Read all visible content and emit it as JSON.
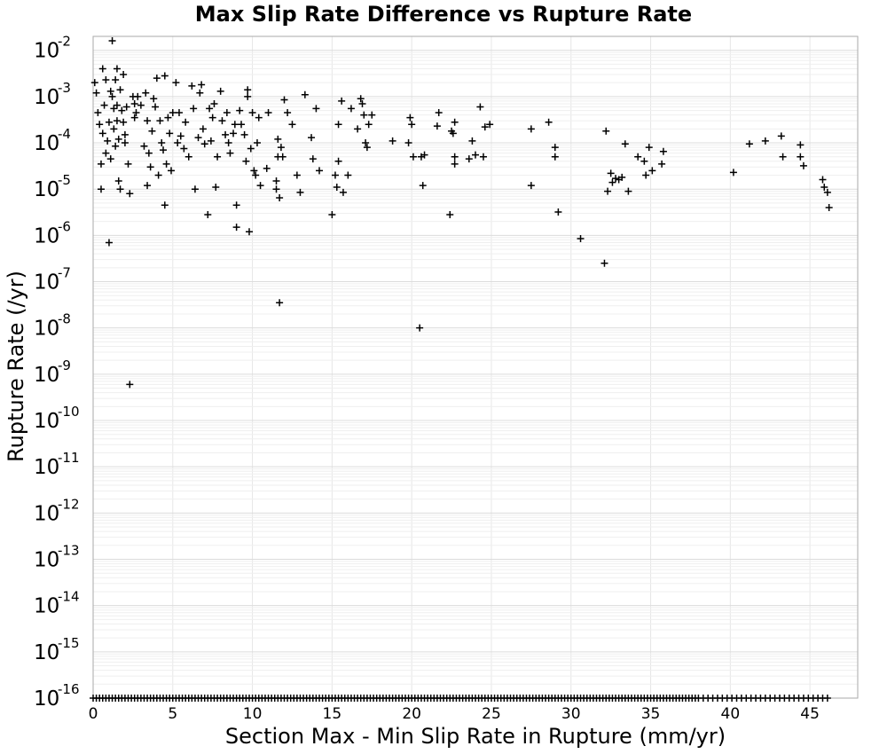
{
  "chart_data": {
    "type": "scatter",
    "title": "Max Slip Rate Difference vs Rupture Rate",
    "xlabel": "Section Max - Min Slip Rate in Rupture (mm/yr)",
    "ylabel": "Rupture Rate (/yr)",
    "xlim": [
      0,
      48
    ],
    "ylim": [
      1e-16,
      0.02
    ],
    "yscale": "log",
    "x_ticks": [
      0,
      5,
      10,
      15,
      20,
      25,
      30,
      35,
      40,
      45
    ],
    "y_ticks": [
      "-2",
      "-3",
      "-4",
      "-5",
      "-6",
      "-7",
      "-8",
      "-9",
      "-10",
      "-11",
      "-12",
      "-13",
      "-14",
      "-15",
      "-16"
    ],
    "y_tick_base": "10",
    "grid": true,
    "marker": "plus",
    "color": "#000000",
    "points": [
      [
        0.1,
        0.002
      ],
      [
        0.2,
        0.0012
      ],
      [
        0.3,
        0.00045
      ],
      [
        0.4,
        0.00025
      ],
      [
        0.5,
        1e-05
      ],
      [
        0.5,
        3.5e-05
      ],
      [
        0.6,
        0.004
      ],
      [
        0.6,
        0.00016
      ],
      [
        0.7,
        0.00065
      ],
      [
        0.8,
        0.0023
      ],
      [
        0.8,
        6e-05
      ],
      [
        0.9,
        0.00011
      ],
      [
        1.0,
        0.00028
      ],
      [
        1.0,
        7e-07
      ],
      [
        1.1,
        0.0013
      ],
      [
        1.1,
        4.5e-05
      ],
      [
        1.2,
        0.016
      ],
      [
        1.2,
        0.001
      ],
      [
        1.3,
        0.00055
      ],
      [
        1.3,
        0.0002
      ],
      [
        1.4,
        8.5e-05
      ],
      [
        1.4,
        0.0023
      ],
      [
        1.5,
        0.004
      ],
      [
        1.5,
        0.00065
      ],
      [
        1.5,
        0.0003
      ],
      [
        1.6,
        0.00012
      ],
      [
        1.6,
        1.5e-05
      ],
      [
        1.7,
        1e-05
      ],
      [
        1.7,
        0.0014
      ],
      [
        1.8,
        0.0005
      ],
      [
        1.9,
        0.003
      ],
      [
        1.9,
        0.00028
      ],
      [
        2.0,
        0.00015
      ],
      [
        2.0,
        0.0001
      ],
      [
        2.1,
        0.0006
      ],
      [
        2.2,
        3.5e-05
      ],
      [
        2.3,
        8e-06
      ],
      [
        2.3,
        6e-10
      ],
      [
        2.5,
        0.001
      ],
      [
        2.6,
        0.0007
      ],
      [
        2.6,
        0.00035
      ],
      [
        2.7,
        0.00045
      ],
      [
        2.8,
        0.001
      ],
      [
        3.0,
        0.00065
      ],
      [
        3.2,
        8.5e-05
      ],
      [
        3.3,
        0.0012
      ],
      [
        3.4,
        0.0003
      ],
      [
        3.4,
        1.2e-05
      ],
      [
        3.5,
        6e-05
      ],
      [
        3.6,
        3e-05
      ],
      [
        3.7,
        0.00018
      ],
      [
        3.8,
        0.0009
      ],
      [
        3.9,
        0.0006
      ],
      [
        4.0,
        0.0025
      ],
      [
        4.1,
        2e-05
      ],
      [
        4.2,
        0.0003
      ],
      [
        4.3,
        0.0001
      ],
      [
        4.4,
        7e-05
      ],
      [
        4.5,
        0.0028
      ],
      [
        4.5,
        4.5e-06
      ],
      [
        4.6,
        3.5e-05
      ],
      [
        4.7,
        0.00035
      ],
      [
        4.8,
        0.00016
      ],
      [
        4.9,
        2.5e-05
      ],
      [
        5.0,
        0.00045
      ],
      [
        5.2,
        0.002
      ],
      [
        5.3,
        0.0001
      ],
      [
        5.4,
        0.00045
      ],
      [
        5.5,
        0.00014
      ],
      [
        5.7,
        7.5e-05
      ],
      [
        5.8,
        0.00028
      ],
      [
        6.0,
        5e-05
      ],
      [
        6.2,
        0.0017
      ],
      [
        6.3,
        0.00055
      ],
      [
        6.4,
        1e-05
      ],
      [
        6.6,
        0.00013
      ],
      [
        6.7,
        0.0012
      ],
      [
        6.8,
        0.0018
      ],
      [
        6.9,
        0.0002
      ],
      [
        7.0,
        9.5e-05
      ],
      [
        7.2,
        2.8e-06
      ],
      [
        7.3,
        0.00055
      ],
      [
        7.4,
        0.00011
      ],
      [
        7.5,
        0.00035
      ],
      [
        7.6,
        0.0007
      ],
      [
        7.7,
        1.1e-05
      ],
      [
        7.8,
        5e-05
      ],
      [
        8.0,
        0.0013
      ],
      [
        8.1,
        0.0003
      ],
      [
        8.3,
        0.00015
      ],
      [
        8.4,
        0.00045
      ],
      [
        8.5,
        0.0001
      ],
      [
        8.6,
        6e-05
      ],
      [
        8.8,
        0.00016
      ],
      [
        8.9,
        0.00025
      ],
      [
        9.0,
        4.5e-06
      ],
      [
        9.0,
        1.5e-06
      ],
      [
        9.2,
        0.0005
      ],
      [
        9.3,
        0.00025
      ],
      [
        9.5,
        0.00015
      ],
      [
        9.6,
        4e-05
      ],
      [
        9.7,
        0.0014
      ],
      [
        9.7,
        0.001
      ],
      [
        9.8,
        1.2e-06
      ],
      [
        9.9,
        7.5e-05
      ],
      [
        10.0,
        0.00045
      ],
      [
        10.1,
        2.5e-05
      ],
      [
        10.2,
        2e-05
      ],
      [
        10.3,
        0.0001
      ],
      [
        10.4,
        0.00035
      ],
      [
        10.5,
        1.2e-05
      ],
      [
        10.9,
        2.8e-05
      ],
      [
        11.0,
        0.00045
      ],
      [
        11.5,
        1.5e-05
      ],
      [
        11.5,
        1e-05
      ],
      [
        11.6,
        0.00012
      ],
      [
        11.6,
        5e-05
      ],
      [
        11.7,
        6.5e-06
      ],
      [
        11.7,
        3.5e-08
      ],
      [
        11.8,
        8e-05
      ],
      [
        11.9,
        5e-05
      ],
      [
        12.0,
        0.00085
      ],
      [
        12.2,
        0.00045
      ],
      [
        12.5,
        0.00025
      ],
      [
        12.8,
        2e-05
      ],
      [
        13.0,
        8.5e-06
      ],
      [
        13.3,
        0.0011
      ],
      [
        13.7,
        0.00013
      ],
      [
        13.8,
        4.5e-05
      ],
      [
        14.0,
        0.00055
      ],
      [
        14.2,
        2.5e-05
      ],
      [
        15.0,
        2.8e-06
      ],
      [
        15.2,
        2e-05
      ],
      [
        15.3,
        1.1e-05
      ],
      [
        15.4,
        4e-05
      ],
      [
        15.4,
        0.00025
      ],
      [
        15.6,
        0.0008
      ],
      [
        15.7,
        8.5e-06
      ],
      [
        16.0,
        2e-05
      ],
      [
        16.2,
        0.00055
      ],
      [
        16.6,
        0.0002
      ],
      [
        16.8,
        0.0009
      ],
      [
        16.9,
        0.0007
      ],
      [
        17.0,
        0.0004
      ],
      [
        17.1,
        0.0001
      ],
      [
        17.2,
        8e-05
      ],
      [
        17.3,
        0.00025
      ],
      [
        17.5,
        0.0004
      ],
      [
        18.8,
        0.00011
      ],
      [
        19.8,
        0.0001
      ],
      [
        19.9,
        0.00035
      ],
      [
        20.0,
        0.00025
      ],
      [
        20.1,
        5e-05
      ],
      [
        20.5,
        1e-08
      ],
      [
        20.6,
        5e-05
      ],
      [
        20.8,
        5.5e-05
      ],
      [
        20.7,
        1.2e-05
      ],
      [
        21.6,
        0.00023
      ],
      [
        21.7,
        0.00045
      ],
      [
        22.4,
        2.8e-06
      ],
      [
        22.5,
        0.00018
      ],
      [
        22.6,
        0.00016
      ],
      [
        22.7,
        0.00028
      ],
      [
        22.7,
        3.5e-05
      ],
      [
        22.7,
        5e-05
      ],
      [
        23.6,
        4.5e-05
      ],
      [
        23.8,
        0.00011
      ],
      [
        24.0,
        5.5e-05
      ],
      [
        24.3,
        0.0006
      ],
      [
        24.5,
        5e-05
      ],
      [
        24.6,
        0.00022
      ],
      [
        24.9,
        0.00025
      ],
      [
        27.5,
        1.2e-05
      ],
      [
        27.5,
        0.0002
      ],
      [
        28.6,
        0.00028
      ],
      [
        29.0,
        8e-05
      ],
      [
        29.0,
        5e-05
      ],
      [
        29.2,
        3.2e-06
      ],
      [
        30.6,
        8.5e-07
      ],
      [
        32.1,
        2.5e-07
      ],
      [
        32.2,
        0.00018
      ],
      [
        32.3,
        9e-06
      ],
      [
        32.5,
        2.2e-05
      ],
      [
        32.6,
        1.4e-05
      ],
      [
        32.8,
        1.7e-05
      ],
      [
        33.0,
        1.6e-05
      ],
      [
        33.2,
        1.8e-05
      ],
      [
        33.4,
        9.5e-05
      ],
      [
        33.6,
        9e-06
      ],
      [
        34.2,
        5e-05
      ],
      [
        34.6,
        4e-05
      ],
      [
        34.7,
        2e-05
      ],
      [
        34.9,
        8e-05
      ],
      [
        35.1,
        2.5e-05
      ],
      [
        35.7,
        3.5e-05
      ],
      [
        35.8,
        6.5e-05
      ],
      [
        40.2,
        2.3e-05
      ],
      [
        41.2,
        9.5e-05
      ],
      [
        42.2,
        0.00011
      ],
      [
        43.2,
        0.00014
      ],
      [
        43.3,
        5e-05
      ],
      [
        44.4,
        9e-05
      ],
      [
        44.4,
        5e-05
      ],
      [
        44.6,
        3.2e-05
      ],
      [
        45.8,
        1.6e-05
      ],
      [
        45.9,
        1.1e-05
      ],
      [
        46.1,
        8.5e-06
      ],
      [
        46.2,
        4e-06
      ]
    ],
    "floor_points": {
      "y": 1e-16,
      "x": [
        0.0,
        0.2,
        0.4,
        0.6,
        0.8,
        1.0,
        1.2,
        1.4,
        1.6,
        1.8,
        2.0,
        2.2,
        2.4,
        2.6,
        2.8,
        3.0,
        3.2,
        3.4,
        3.6,
        3.8,
        4.0,
        4.2,
        4.4,
        4.6,
        4.8,
        5.0,
        5.2,
        5.4,
        5.6,
        5.8,
        6.0,
        6.2,
        6.4,
        6.6,
        6.8,
        7.0,
        7.2,
        7.4,
        7.6,
        7.8,
        8.0,
        8.2,
        8.4,
        8.6,
        8.8,
        9.0,
        9.2,
        9.4,
        9.6,
        9.8,
        10.0,
        10.2,
        10.4,
        10.6,
        10.8,
        11.0,
        11.2,
        11.4,
        11.6,
        11.8,
        12.0,
        12.2,
        12.4,
        12.6,
        12.8,
        13.0,
        13.2,
        13.4,
        13.6,
        13.8,
        14.0,
        14.2,
        14.4,
        14.6,
        14.8,
        15.0,
        15.2,
        15.4,
        15.6,
        15.8,
        16.0,
        16.2,
        16.4,
        16.6,
        16.8,
        17.0,
        17.2,
        17.4,
        17.6,
        17.8,
        18.0,
        18.2,
        18.4,
        18.6,
        18.8,
        19.0,
        19.2,
        19.4,
        19.6,
        19.8,
        20.0,
        20.2,
        20.4,
        20.6,
        20.8,
        21.0,
        21.2,
        21.4,
        21.6,
        21.8,
        22.0,
        22.2,
        22.4,
        22.6,
        22.8,
        23.0,
        23.2,
        23.4,
        23.6,
        23.8,
        24.0,
        24.2,
        24.4,
        24.6,
        24.8,
        25.0,
        25.2,
        25.4,
        25.6,
        25.8,
        26.0,
        26.2,
        26.4,
        26.6,
        26.8,
        27.0,
        27.2,
        27.4,
        27.6,
        27.8,
        28.0,
        28.2,
        28.4,
        28.6,
        28.8,
        29.0,
        29.2,
        29.4,
        29.6,
        29.8,
        30.0,
        30.2,
        30.4,
        30.6,
        30.8,
        31.0,
        31.2,
        31.4,
        31.6,
        31.8,
        32.0,
        32.2,
        32.4,
        32.6,
        32.8,
        33.0,
        33.2,
        33.4,
        33.6,
        33.8,
        34.0,
        34.2,
        34.4,
        34.6,
        34.8,
        35.0,
        35.2,
        35.4,
        35.6,
        35.8,
        36.0,
        36.2,
        36.4,
        36.6,
        36.8,
        37.0,
        37.2,
        37.4,
        37.6,
        37.8,
        38.0,
        38.3,
        38.6,
        38.9,
        39.2,
        39.5,
        39.8,
        40.1,
        40.4,
        40.7,
        41.0,
        41.3,
        41.6,
        41.9,
        42.2,
        42.5,
        42.8,
        43.1,
        43.4,
        43.7,
        44.0,
        44.3,
        44.6,
        44.9,
        45.2,
        45.5,
        45.8,
        46.1
      ]
    }
  }
}
